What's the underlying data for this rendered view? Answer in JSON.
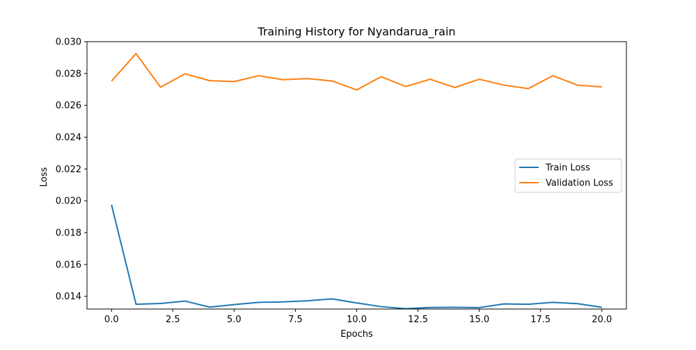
{
  "chart_data": {
    "type": "line",
    "title": "Training History for Nyandarua_rain",
    "xlabel": "Epochs",
    "ylabel": "Loss",
    "xlim": [
      -1.0,
      21.0
    ],
    "ylim": [
      0.0132,
      0.03
    ],
    "x": [
      0,
      1,
      2,
      3,
      4,
      5,
      6,
      7,
      8,
      9,
      10,
      11,
      12,
      13,
      14,
      15,
      16,
      17,
      18,
      19,
      20
    ],
    "xticks": [
      0.0,
      2.5,
      5.0,
      7.5,
      10.0,
      12.5,
      15.0,
      17.5,
      20.0
    ],
    "xtick_labels": [
      "0.0",
      "2.5",
      "5.0",
      "7.5",
      "10.0",
      "12.5",
      "15.0",
      "17.5",
      "20.0"
    ],
    "yticks": [
      0.014,
      0.016,
      0.018,
      0.02,
      0.022,
      0.024,
      0.026,
      0.028,
      0.03
    ],
    "ytick_labels": [
      "0.014",
      "0.016",
      "0.018",
      "0.020",
      "0.022",
      "0.024",
      "0.026",
      "0.028",
      "0.030"
    ],
    "grid": false,
    "legend_position": "center-right",
    "series": [
      {
        "name": "Train Loss",
        "color": "#1f77b4",
        "values": [
          0.01975,
          0.0135,
          0.01355,
          0.0137,
          0.01332,
          0.01348,
          0.01362,
          0.01365,
          0.01372,
          0.01384,
          0.01358,
          0.01335,
          0.01322,
          0.0133,
          0.01331,
          0.01329,
          0.01352,
          0.0135,
          0.01362,
          0.01354,
          0.01331
        ]
      },
      {
        "name": "Validation Loss",
        "color": "#ff7f0e",
        "values": [
          0.02752,
          0.02925,
          0.02714,
          0.02798,
          0.02755,
          0.02749,
          0.02786,
          0.02761,
          0.02768,
          0.02753,
          0.02697,
          0.0278,
          0.02718,
          0.02764,
          0.02712,
          0.02764,
          0.02727,
          0.02705,
          0.02786,
          0.02727,
          0.02716
        ]
      }
    ]
  }
}
